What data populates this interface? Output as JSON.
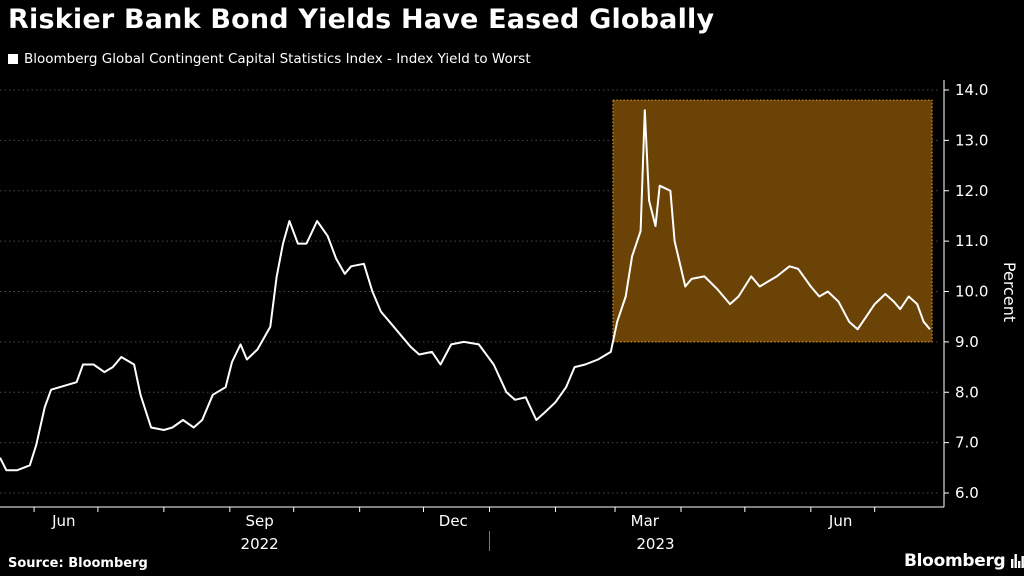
{
  "title": "Riskier Bank Bond Yields Have Eased Globally",
  "source": "Source: Bloomberg",
  "brand": "Bloomberg",
  "colors": {
    "background": "#000000",
    "line": "#ffffff",
    "highlight_fill": "#6b4306",
    "highlight_border": "#f0a020",
    "grid": "#4a4a4a"
  },
  "chart_data": {
    "type": "line",
    "xlabel": "",
    "ylabel": "Percent",
    "ylim": [
      6.0,
      14.0
    ],
    "y_ticks": [
      "6.0",
      "7.0",
      "8.0",
      "9.0",
      "10.0",
      "11.0",
      "12.0",
      "13.0",
      "14.0"
    ],
    "x_tick_labels": [
      "Jun",
      "Sep",
      "Dec",
      "Mar",
      "Jun"
    ],
    "year_labels": [
      "2022",
      "2023"
    ],
    "grid": "horizontal dashed",
    "legend": "top-left",
    "highlight_region": {
      "x_start": "2023-02-28",
      "x_end": "2023-07-28",
      "y_start": 9.0,
      "y_end": 13.8
    },
    "series": [
      {
        "name": "Bloomberg Global Contingent Capital Statistics Index - Index Yield to Worst",
        "points": [
          [
            "2022-05-16",
            6.7
          ],
          [
            "2022-05-19",
            6.45
          ],
          [
            "2022-05-24",
            6.45
          ],
          [
            "2022-05-30",
            6.55
          ],
          [
            "2022-06-02",
            6.95
          ],
          [
            "2022-06-06",
            7.7
          ],
          [
            "2022-06-09",
            8.05
          ],
          [
            "2022-06-13",
            8.1
          ],
          [
            "2022-06-17",
            8.15
          ],
          [
            "2022-06-21",
            8.2
          ],
          [
            "2022-06-24",
            8.55
          ],
          [
            "2022-06-29",
            8.55
          ],
          [
            "2022-07-04",
            8.4
          ],
          [
            "2022-07-08",
            8.5
          ],
          [
            "2022-07-12",
            8.7
          ],
          [
            "2022-07-18",
            8.55
          ],
          [
            "2022-07-21",
            7.95
          ],
          [
            "2022-07-26",
            7.3
          ],
          [
            "2022-08-01",
            7.25
          ],
          [
            "2022-08-05",
            7.3
          ],
          [
            "2022-08-10",
            7.45
          ],
          [
            "2022-08-15",
            7.3
          ],
          [
            "2022-08-19",
            7.45
          ],
          [
            "2022-08-24",
            7.95
          ],
          [
            "2022-08-30",
            8.1
          ],
          [
            "2022-09-02",
            8.6
          ],
          [
            "2022-09-06",
            8.95
          ],
          [
            "2022-09-09",
            8.65
          ],
          [
            "2022-09-14",
            8.85
          ],
          [
            "2022-09-20",
            9.3
          ],
          [
            "2022-09-23",
            10.3
          ],
          [
            "2022-09-26",
            10.95
          ],
          [
            "2022-09-29",
            11.4
          ],
          [
            "2022-10-03",
            10.95
          ],
          [
            "2022-10-07",
            10.95
          ],
          [
            "2022-10-12",
            11.4
          ],
          [
            "2022-10-17",
            11.1
          ],
          [
            "2022-10-21",
            10.65
          ],
          [
            "2022-10-25",
            10.35
          ],
          [
            "2022-10-28",
            10.5
          ],
          [
            "2022-11-03",
            10.55
          ],
          [
            "2022-11-07",
            10.0
          ],
          [
            "2022-11-11",
            9.6
          ],
          [
            "2022-11-16",
            9.35
          ],
          [
            "2022-11-21",
            9.1
          ],
          [
            "2022-11-25",
            8.9
          ],
          [
            "2022-11-29",
            8.75
          ],
          [
            "2022-12-05",
            8.8
          ],
          [
            "2022-12-09",
            8.55
          ],
          [
            "2022-12-14",
            8.95
          ],
          [
            "2022-12-20",
            9.0
          ],
          [
            "2022-12-27",
            8.95
          ],
          [
            "2023-01-03",
            8.55
          ],
          [
            "2023-01-09",
            8.0
          ],
          [
            "2023-01-13",
            7.85
          ],
          [
            "2023-01-18",
            7.9
          ],
          [
            "2023-01-23",
            7.45
          ],
          [
            "2023-01-27",
            7.6
          ],
          [
            "2023-02-01",
            7.8
          ],
          [
            "2023-02-06",
            8.1
          ],
          [
            "2023-02-10",
            8.5
          ],
          [
            "2023-02-15",
            8.55
          ],
          [
            "2023-02-21",
            8.65
          ],
          [
            "2023-02-27",
            8.8
          ],
          [
            "2023-03-02",
            9.4
          ],
          [
            "2023-03-06",
            9.9
          ],
          [
            "2023-03-09",
            10.7
          ],
          [
            "2023-03-13",
            11.2
          ],
          [
            "2023-03-15",
            13.6
          ],
          [
            "2023-03-17",
            11.8
          ],
          [
            "2023-03-20",
            11.3
          ],
          [
            "2023-03-22",
            12.1
          ],
          [
            "2023-03-27",
            12.0
          ],
          [
            "2023-03-29",
            11.0
          ],
          [
            "2023-04-03",
            10.1
          ],
          [
            "2023-04-06",
            10.25
          ],
          [
            "2023-04-12",
            10.3
          ],
          [
            "2023-04-18",
            10.05
          ],
          [
            "2023-04-24",
            9.75
          ],
          [
            "2023-04-28",
            9.9
          ],
          [
            "2023-05-04",
            10.3
          ],
          [
            "2023-05-08",
            10.1
          ],
          [
            "2023-05-12",
            10.2
          ],
          [
            "2023-05-16",
            10.3
          ],
          [
            "2023-05-22",
            10.5
          ],
          [
            "2023-05-26",
            10.45
          ],
          [
            "2023-06-01",
            10.1
          ],
          [
            "2023-06-05",
            9.9
          ],
          [
            "2023-06-09",
            10.0
          ],
          [
            "2023-06-14",
            9.8
          ],
          [
            "2023-06-19",
            9.4
          ],
          [
            "2023-06-23",
            9.25
          ],
          [
            "2023-06-27",
            9.5
          ],
          [
            "2023-07-01",
            9.75
          ],
          [
            "2023-07-06",
            9.95
          ],
          [
            "2023-07-10",
            9.8
          ],
          [
            "2023-07-13",
            9.65
          ],
          [
            "2023-07-17",
            9.9
          ],
          [
            "2023-07-21",
            9.75
          ],
          [
            "2023-07-24",
            9.4
          ],
          [
            "2023-07-27",
            9.25
          ]
        ]
      }
    ]
  }
}
